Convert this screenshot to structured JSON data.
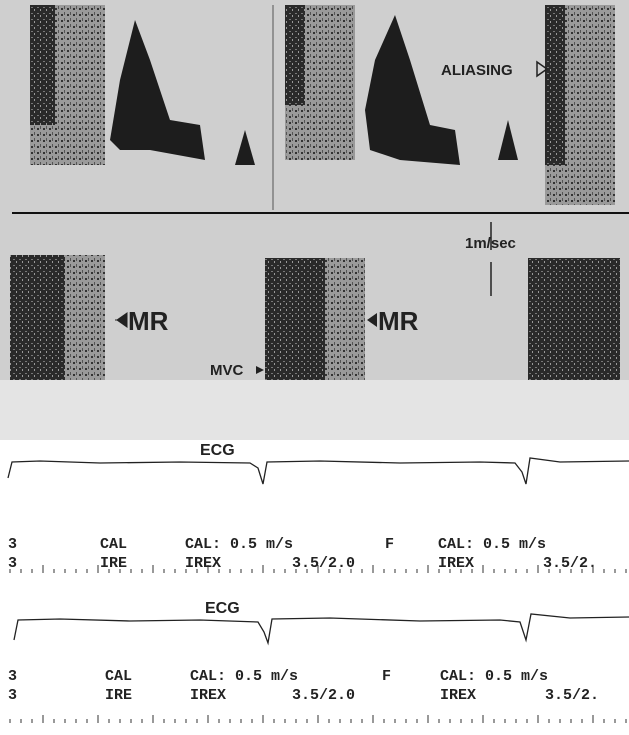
{
  "doppler": {
    "aliasing": "ALIASING",
    "scale": "1m/sec",
    "mr_left": "MR",
    "mr_right": "MR",
    "mvc": "MVC"
  },
  "strips": [
    {
      "ecg_label": "ECG",
      "rows": [
        [
          "3",
          "CAL",
          "CAL: 0.5 m/s",
          "F",
          "CAL: 0.5 m/s"
        ],
        [
          "3",
          "IRE",
          "IREX",
          "3.5/2.0",
          "IREX",
          "3.5/2."
        ]
      ]
    },
    {
      "ecg_label": "ECG",
      "rows": [
        [
          "3",
          "CAL",
          "CAL: 0.5 m/s",
          "F",
          "CAL: 0.5 m/s"
        ],
        [
          "3",
          "IRE",
          "IREX",
          "3.5/2.0",
          "IREX",
          "3.5/2."
        ]
      ]
    }
  ]
}
